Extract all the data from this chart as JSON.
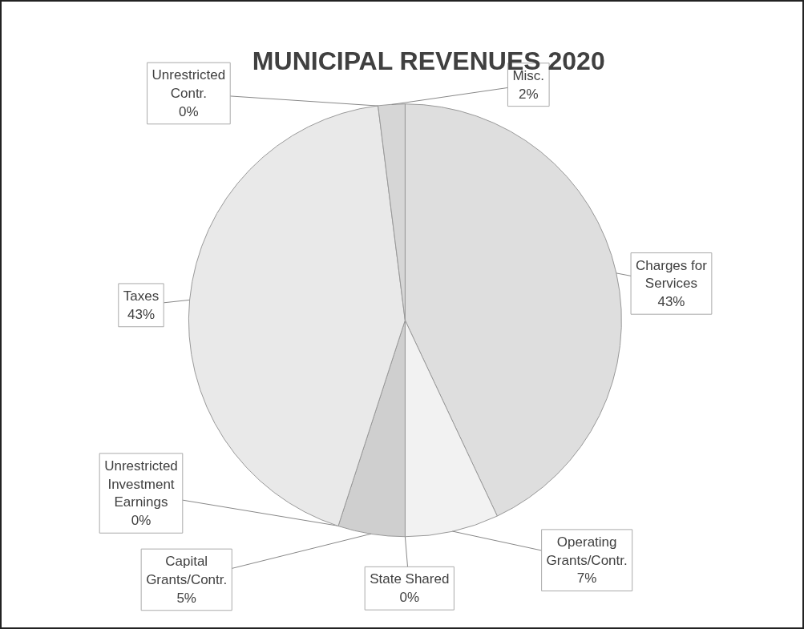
{
  "chart_data": {
    "type": "pie",
    "title": "MUNICIPAL REVENUES 2020",
    "categories": [
      "Charges for Services",
      "Operating Grants/Contr.",
      "State Shared",
      "Capital Grants/Contr.",
      "Unrestricted Investment Earnings",
      "Taxes",
      "Unrestricted Contr.",
      "Misc."
    ],
    "values": [
      43,
      7,
      0,
      5,
      0,
      43,
      0,
      2
    ],
    "value_labels": [
      "43%",
      "7%",
      "0%",
      "5%",
      "0%",
      "43%",
      "0%",
      "2%"
    ],
    "colors": [
      "#dedede",
      "#f2f2f2",
      "#7a7a7a",
      "#cfcfcf",
      "#9a9a9a",
      "#e9e9e9",
      "#6e6e6e",
      "#d6d6d6"
    ]
  }
}
